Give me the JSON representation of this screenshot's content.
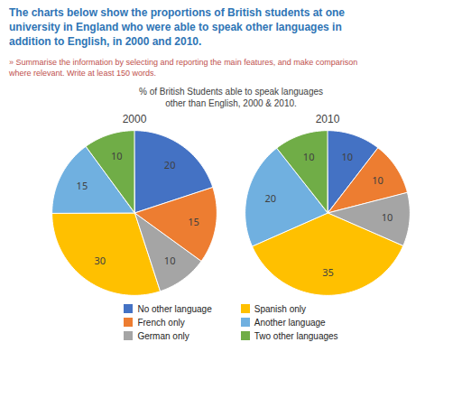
{
  "title": "The charts below show the proportions of British students at one\nuniversity in England who were able to speak other languages in\naddition to English, in 2000 and 2010.",
  "subtitle": "» Summarise the information by selecting and reporting the main features, and make comparison\nwhere relevant. Write at least 150 words.",
  "annotations": [
    "% of British Students able to speak languages\nother than English, 2000 & 2010."
  ],
  "chart_data": [
    {
      "type": "pie",
      "title": "2000",
      "categories": [
        "No other language",
        "French only",
        "German only",
        "Spanish only",
        "Another language",
        "Two other languages"
      ],
      "values": [
        20,
        15,
        10,
        30,
        15,
        10
      ],
      "colors": [
        "#4472C4",
        "#ED7D31",
        "#A5A5A5",
        "#FFC000",
        "#70B0E0",
        "#70AD47"
      ],
      "data_labels": true,
      "legend": "bottom"
    },
    {
      "type": "pie",
      "title": "2010",
      "categories": [
        "No other language",
        "French only",
        "German only",
        "Spanish only",
        "Another language",
        "Two other languages"
      ],
      "values": [
        10,
        10,
        10,
        35,
        20,
        10
      ],
      "colors": [
        "#4472C4",
        "#ED7D31",
        "#A5A5A5",
        "#FFC000",
        "#70B0E0",
        "#70AD47"
      ],
      "data_labels": true,
      "legend": "bottom"
    }
  ]
}
